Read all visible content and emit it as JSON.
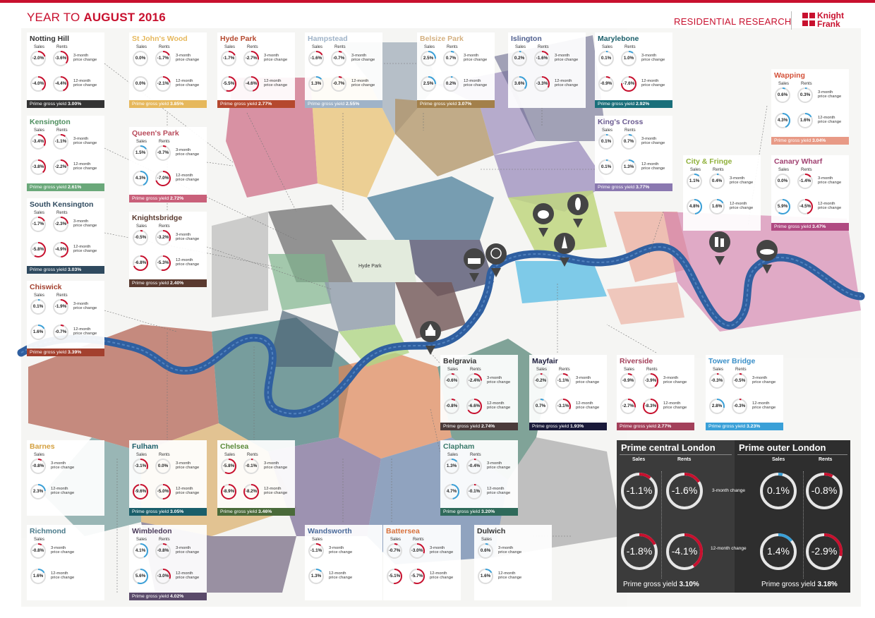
{
  "header": {
    "title_light": "YEAR TO ",
    "title_bold": "AUGUST 2016",
    "research": "RESIDENTIAL RESEARCH",
    "logo_line1": "Knight",
    "logo_line2": "Frank"
  },
  "labels": {
    "sales": "Sales",
    "rents": "Rents",
    "three_month": [
      "3-month",
      "price change"
    ],
    "twelve_month": [
      "12-month",
      "price change"
    ],
    "yield_prefix": "Prime gross yield "
  },
  "map": {
    "park_label": "Hyde Park"
  },
  "areas": [
    {
      "name": "Notting Hill",
      "color": "#333333",
      "name_color": "#333333",
      "s3": "-2.0%",
      "r3": "-3.6%",
      "s12": "-4.0%",
      "r12": "-4.4%",
      "yield": "3.00%"
    },
    {
      "name": "St John's Wood",
      "color": "#e6b85c",
      "name_color": "#e6b85c",
      "s3": "0.0%",
      "r3": "-1.7%",
      "s12": "0.0%",
      "r12": "-2.1%",
      "yield": "3.85%"
    },
    {
      "name": "Hyde Park",
      "color": "#b5482e",
      "name_color": "#b5482e",
      "s3": "-1.7%",
      "r3": "-2.7%",
      "s12": "-5.5%",
      "r12": "-4.6%",
      "yield": "2.77%"
    },
    {
      "name": "Hampstead",
      "color": "#9fb3c8",
      "name_color": "#9fb3c8",
      "s3": "-1.6%",
      "r3": "-0.7%",
      "s12": "1.3%",
      "r12": "-0.7%",
      "yield": "2.55%"
    },
    {
      "name": "Belsize Park",
      "color": "#a3804a",
      "name_color": "#d4b080",
      "s3": "2.5%",
      "r3": "0.7%",
      "s12": "2.5%",
      "r12": "0.2%",
      "yield": "3.07%"
    },
    {
      "name": "Islington",
      "color": "#4f4f7a",
      "name_color": "#4f5f8f",
      "s3": "0.2%",
      "r3": "-1.6%",
      "s12": "3.6%",
      "r12": "-3.3%",
      "yield": ""
    },
    {
      "name": "Marylebone",
      "color": "#1a6f7a",
      "name_color": "#1a5e6a",
      "s3": "0.1%",
      "r3": "1.0%",
      "s12": "-0.9%",
      "r12": "-7.6%",
      "yield": "2.92%"
    },
    {
      "name": "Wapping",
      "color": "#e89a86",
      "name_color": "#d4523a",
      "s3": "0.6%",
      "r3": "0.3%",
      "s12": "4.3%",
      "r12": "1.6%",
      "yield": "3.04%"
    },
    {
      "name": "Kensington",
      "color": "#6aa87a",
      "name_color": "#4e8f5f",
      "s3": "-3.4%",
      "r3": "-1.1%",
      "s12": "-3.8%",
      "r12": "-2.2%",
      "yield": "2.61%"
    },
    {
      "name": "Queen's Park",
      "color": "#c9607a",
      "name_color": "#b84a5a",
      "s3": "1.5%",
      "r3": "-0.7%",
      "s12": "4.3%",
      "r12": "-7.0%",
      "yield": "2.72%"
    },
    {
      "name": "King's Cross",
      "color": "#8a78b0",
      "name_color": "#6a5a90",
      "s3": "0.1%",
      "r3": "0.7%",
      "s12": "0.1%",
      "r12": "1.3%",
      "yield": "3.77%"
    },
    {
      "name": "City & Fringe",
      "color": "#b5cf6a",
      "name_color": "#8fb03a",
      "s3": "1.1%",
      "r3": "0.4%",
      "s12": "4.8%",
      "r12": "1.6%",
      "yield": ""
    },
    {
      "name": "Canary Wharf",
      "color": "#b04a82",
      "name_color": "#a04070",
      "s3": "0.0%",
      "r3": "-1.4%",
      "s12": "5.9%",
      "r12": "-4.5%",
      "yield": "3.47%"
    },
    {
      "name": "South Kensington",
      "color": "#2f4a5f",
      "name_color": "#2f4a5f",
      "s3": "-1.7%",
      "r3": "-2.3%",
      "s12": "-5.8%",
      "r12": "-4.9%",
      "yield": "3.03%"
    },
    {
      "name": "Knightsbridge",
      "color": "#5a3a2f",
      "name_color": "#5a3a2f",
      "s3": "-0.5%",
      "r3": "-3.2%",
      "s12": "-6.8%",
      "r12": "-5.3%",
      "yield": "2.40%"
    },
    {
      "name": "Chiswick",
      "color": "#a3402e",
      "name_color": "#a3402e",
      "s3": "0.1%",
      "r3": "-1.9%",
      "s12": "1.6%",
      "r12": "-0.7%",
      "yield": "3.39%"
    },
    {
      "name": "Belgravia",
      "color": "#4a3a3a",
      "name_color": "#333333",
      "s3": "-0.6%",
      "r3": "-2.4%",
      "s12": "-0.8%",
      "r12": "-6.6%",
      "yield": "2.74%"
    },
    {
      "name": "Mayfair",
      "color": "#1a1a3a",
      "name_color": "#1a1a3a",
      "s3": "-0.2%",
      "r3": "-1.1%",
      "s12": "0.7%",
      "r12": "-3.1%",
      "yield": "1.93%"
    },
    {
      "name": "Riverside",
      "color": "#a3405a",
      "name_color": "#a3405a",
      "s3": "-0.9%",
      "r3": "-3.9%",
      "s12": "-2.7%",
      "r12": "-8.3%",
      "yield": "2.77%"
    },
    {
      "name": "Tower Bridge",
      "color": "#3aa0d8",
      "name_color": "#3a8fc8",
      "s3": "-0.3%",
      "r3": "-0.5%",
      "s12": "2.8%",
      "r12": "-0.3%",
      "yield": "3.23%"
    },
    {
      "name": "Barnes",
      "color": "#e6b85c",
      "name_color": "#d4a040",
      "s3": "-0.8%",
      "r3": "",
      "s12": "2.3%",
      "r12": "",
      "yield": ""
    },
    {
      "name": "Fulham",
      "color": "#1a5e6a",
      "name_color": "#1a5e6a",
      "s3": "-3.1%",
      "r3": "0.0%",
      "s12": "-9.6%",
      "r12": "-5.0%",
      "yield": "3.05%"
    },
    {
      "name": "Chelsea",
      "color": "#4a6a3a",
      "name_color": "#5a8a3a",
      "s3": "-5.8%",
      "r3": "-0.1%",
      "s12": "-8.9%",
      "r12": "-8.2%",
      "yield": "3.46%"
    },
    {
      "name": "Clapham",
      "color": "#2f6a5a",
      "name_color": "#3a7a6a",
      "s3": "1.3%",
      "r3": "-0.4%",
      "s12": "4.7%",
      "r12": "-0.1%",
      "yield": "3.20%"
    },
    {
      "name": "Richmond",
      "color": "#5a8a8a",
      "name_color": "#4a7a8a",
      "s3": "-0.8%",
      "r3": "",
      "s12": "1.6%",
      "r12": "",
      "yield": ""
    },
    {
      "name": "Wimbledon",
      "color": "#5a4a6a",
      "name_color": "#4a3a5a",
      "s3": "4.1%",
      "r3": "-0.8%",
      "s12": "5.6%",
      "r12": "-3.0%",
      "yield": "4.02%"
    },
    {
      "name": "Wandsworth",
      "color": "#4a6a9a",
      "name_color": "#4a6a9a",
      "s3": "-1.1%",
      "r3": "",
      "s12": "1.3%",
      "r12": "",
      "yield": ""
    },
    {
      "name": "Battersea",
      "color": "#d8703a",
      "name_color": "#d8703a",
      "s3": "-0.7%",
      "r3": "-3.0%",
      "s12": "-5.1%",
      "r12": "-5.7%",
      "yield": ""
    },
    {
      "name": "Dulwich",
      "color": "#555555",
      "name_color": "#333333",
      "s3": "0.6%",
      "r3": "",
      "s12": "1.6%",
      "r12": "",
      "yield": ""
    }
  ],
  "summary": {
    "central": {
      "title": "Prime central London",
      "s3": "-1.1%",
      "r3": "-1.6%",
      "s12": "-1.8%",
      "r12": "-4.1%",
      "yield": "3.10%"
    },
    "outer": {
      "title": "Prime outer London",
      "s3": "0.1%",
      "r3": "-0.8%",
      "s12": "1.4%",
      "r12": "-2.9%",
      "yield": "3.18%"
    },
    "label_3m": "3-month change",
    "label_12m": "12-month change"
  },
  "colors": {
    "accent": "#c8102e",
    "positive_ring": "#3aa0d8",
    "negative_ring": "#c8102e",
    "river": "#2f5fa0"
  }
}
